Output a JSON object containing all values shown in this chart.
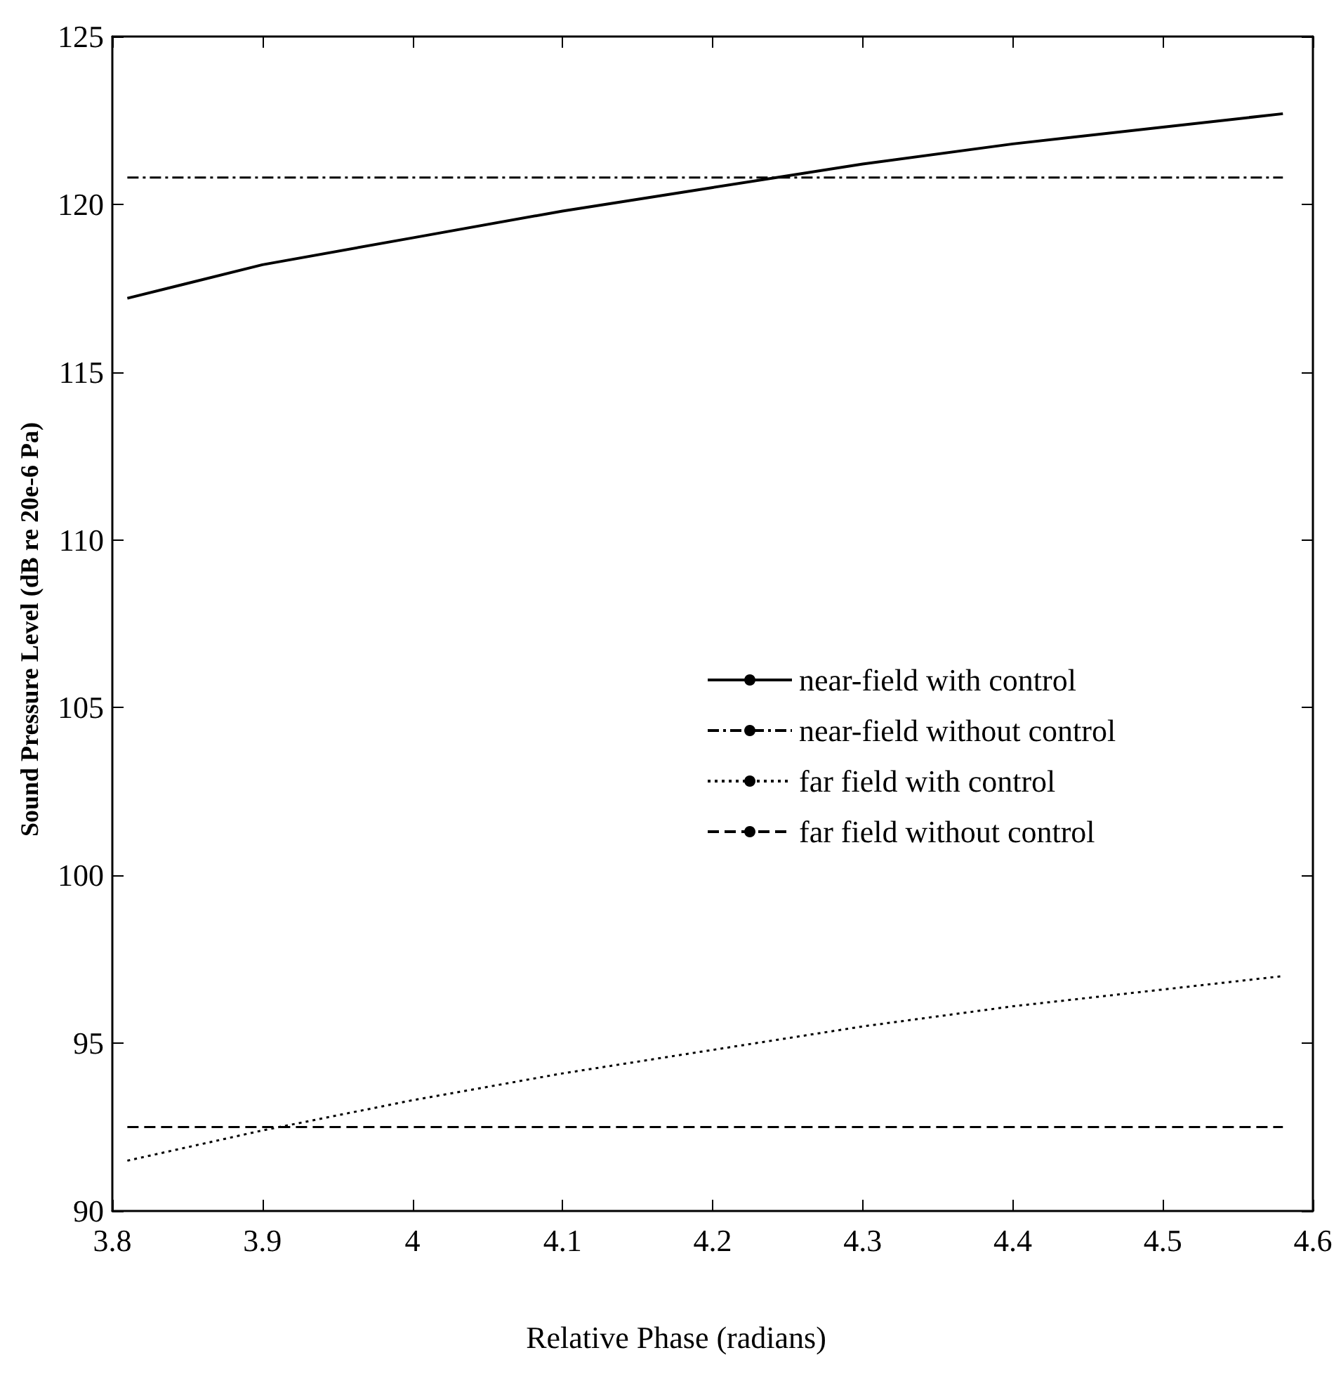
{
  "chart_data": {
    "type": "line",
    "xlabel": "Relative Phase (radians)",
    "ylabel": "Sound Pressure Level (dB re 20e-6 Pa)",
    "xlim": [
      3.8,
      4.6
    ],
    "xticks": [
      3.8,
      3.9,
      4,
      4.1,
      4.2,
      4.3,
      4.4,
      4.5,
      4.6
    ],
    "ylim": [
      90,
      125
    ],
    "yticks": [
      90,
      95,
      100,
      105,
      110,
      115,
      120,
      125
    ],
    "grid": false,
    "legend": "right",
    "marker": "none",
    "series": [
      {
        "name": "near-field with control",
        "color": "#000000",
        "line_style": "solid",
        "x": [
          3.81,
          3.9,
          4.0,
          4.1,
          4.2,
          4.3,
          4.4,
          4.5,
          4.58
        ],
        "values": [
          117.2,
          118.2,
          119.0,
          119.8,
          120.5,
          121.2,
          121.8,
          122.3,
          122.7
        ]
      },
      {
        "name": "near-field without control",
        "color": "#000000",
        "line_style": "dashdot",
        "x": [
          3.81,
          4.58
        ],
        "values": [
          120.8,
          120.8
        ]
      },
      {
        "name": "far field with control",
        "color": "#000000",
        "line_style": "dotted",
        "x": [
          3.81,
          3.9,
          4.0,
          4.1,
          4.2,
          4.3,
          4.4,
          4.5,
          4.58
        ],
        "values": [
          91.5,
          92.4,
          93.3,
          94.1,
          94.8,
          95.5,
          96.1,
          96.6,
          97.0
        ]
      },
      {
        "name": "far field without control",
        "color": "#000000",
        "line_style": "dashed",
        "x": [
          3.81,
          4.58
        ],
        "values": [
          92.5,
          92.5
        ]
      }
    ]
  }
}
